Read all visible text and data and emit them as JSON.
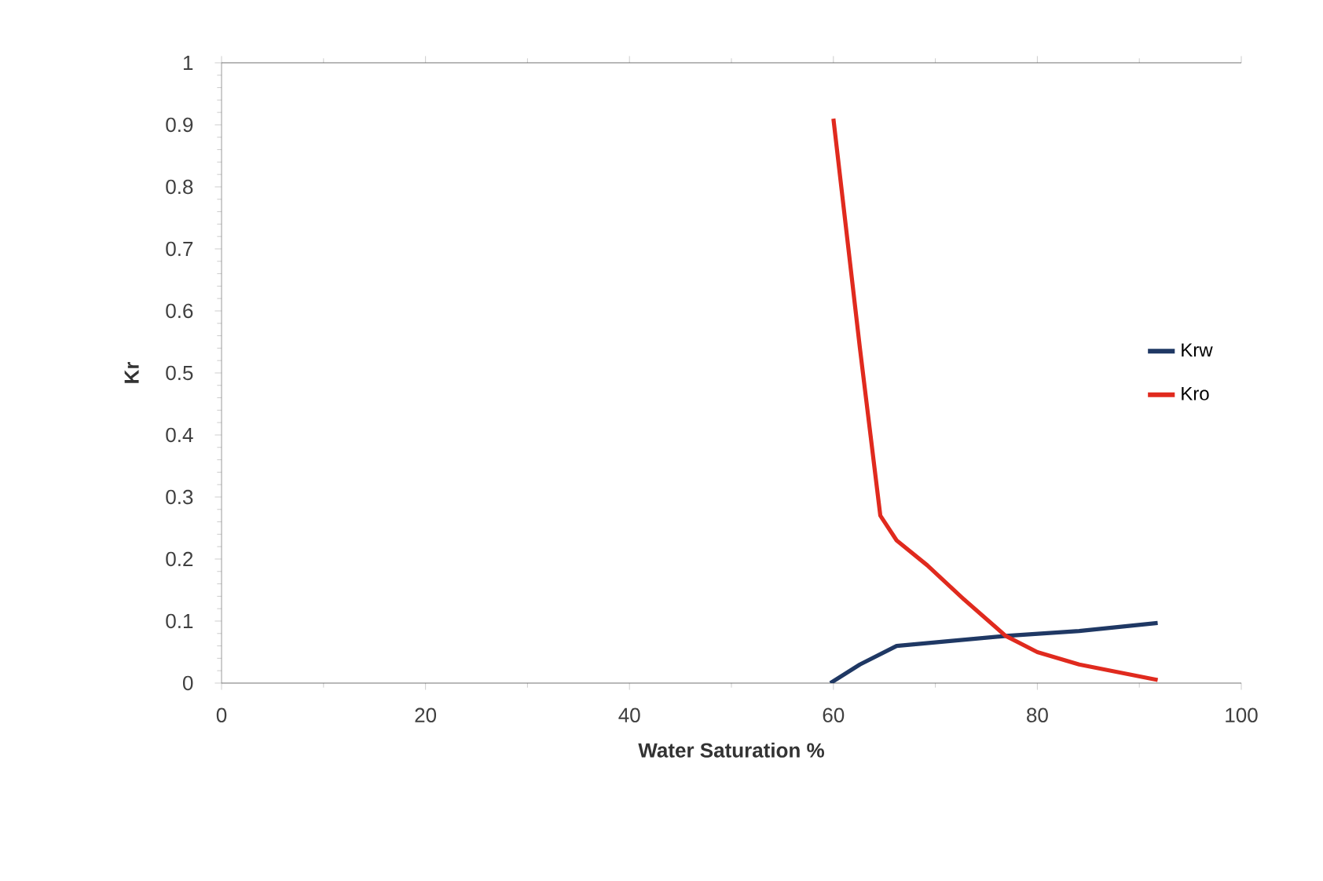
{
  "chart_data": {
    "type": "line",
    "xlabel": "Water Saturation %",
    "ylabel": "Kr",
    "xlim": [
      0,
      100
    ],
    "ylim": [
      0,
      1
    ],
    "xticks": [
      0,
      20,
      40,
      60,
      80,
      100
    ],
    "yticks": [
      0,
      {
        "value": 0.1,
        "label": "0.1"
      },
      {
        "value": 0.2,
        "label": "0.2"
      },
      {
        "value": 0.3,
        "label": "0.3"
      },
      {
        "value": 0.4,
        "label": "0.4"
      },
      {
        "value": 0.5,
        "label": "0.5"
      },
      {
        "value": 0.6,
        "label": "0.6"
      },
      {
        "value": 0.7,
        "label": "0.7"
      },
      {
        "value": 0.8,
        "label": "0.8"
      },
      {
        "value": 0.9,
        "label": "0.9"
      },
      1
    ],
    "legend": "right",
    "marker": "none",
    "line_style": "solid",
    "grid": false,
    "series": [
      {
        "name": "Krw",
        "color": "#1f3864",
        "x": [
          59.7,
          62.6,
          66.2,
          70.8,
          76.9,
          84.1,
          91.8
        ],
        "values": [
          0,
          0.03,
          0.06,
          0.067,
          0.076,
          0.084,
          0.097
        ]
      },
      {
        "name": "Kro",
        "color": "#e02a1e",
        "x": [
          60,
          62.6,
          64.6,
          66.2,
          69.2,
          72.8,
          76.9,
          80,
          84.1,
          91.8
        ],
        "values": [
          0.91,
          0.54,
          0.27,
          0.23,
          0.19,
          0.135,
          0.076,
          0.05,
          0.03,
          0.005
        ]
      }
    ]
  }
}
